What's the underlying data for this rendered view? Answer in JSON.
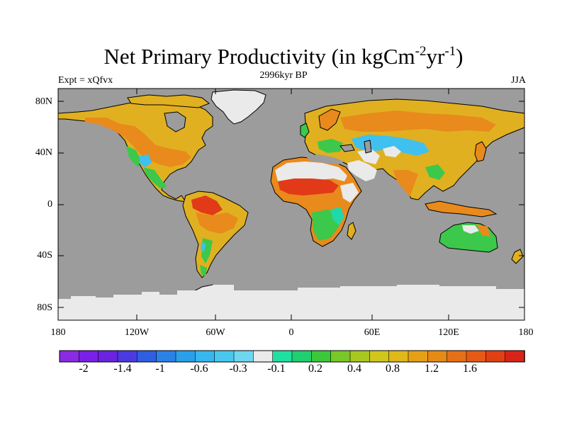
{
  "title": "Net Primary Productivity (in kgCm",
  "title_exp1": "-2",
  "title_mid": "yr",
  "title_exp2": "-1",
  "title_close": ")",
  "expt_label": "Expt = xQfvx",
  "subtitle": "2996kyr BP",
  "season": "JJA",
  "latitude_ticks": [
    "80N",
    "40N",
    "0",
    "40S",
    "80S"
  ],
  "longitude_ticks": [
    "180",
    "120W",
    "60W",
    "0",
    "60E",
    "120E",
    "180"
  ],
  "colorbar": {
    "tick_labels": [
      "-2",
      "-1.4",
      "-1",
      "-0.6",
      "-0.3",
      "-0.1",
      "0.2",
      "0.4",
      "0.8",
      "1.2",
      "1.6"
    ],
    "colors": [
      "#8a2be2",
      "#7a1fe6",
      "#6a23e0",
      "#4b3ae0",
      "#2f5fe0",
      "#2a82e6",
      "#2aa0ea",
      "#38b6ee",
      "#48c8ee",
      "#6ed6f0",
      "#eaeaea",
      "#1fe0a0",
      "#20d070",
      "#3cc83a",
      "#78c828",
      "#a8c820",
      "#d0c61c",
      "#e0b81a",
      "#e6a018",
      "#e68a16",
      "#e67016",
      "#e65a16",
      "#e04014",
      "#d82418"
    ]
  },
  "colors": {
    "ocean": "#9c9c9c",
    "ice": "#eaeaea",
    "high": "#e23a18",
    "midhigh": "#e98a1c",
    "mid": "#e0b020",
    "low": "#a8c828",
    "lower": "#3cc84a",
    "teal": "#20d8a8",
    "cyan": "#40c0ee"
  }
}
